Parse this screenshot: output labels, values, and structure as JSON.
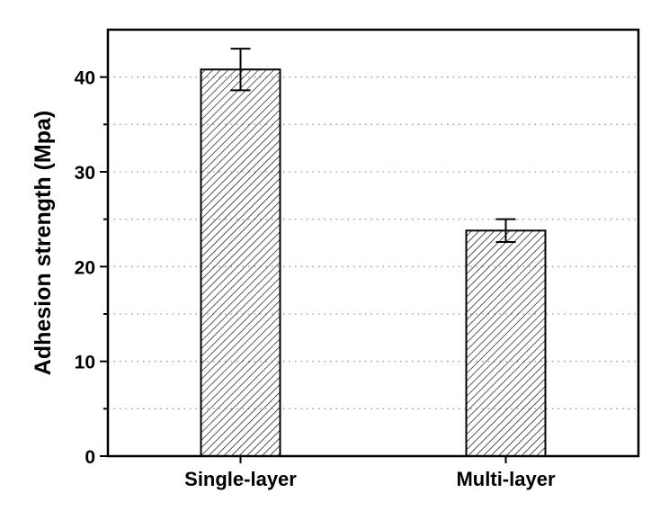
{
  "chart_data": {
    "type": "bar",
    "title": "",
    "xlabel": "",
    "ylabel": "Adhesion strength (Mpa)",
    "categories": [
      "Single-layer",
      "Multi-layer"
    ],
    "values": [
      40.8,
      23.8
    ],
    "errors": [
      2.2,
      1.2
    ],
    "ylim": [
      0,
      45
    ],
    "yticks": [
      0,
      10,
      20,
      30,
      40
    ],
    "ytick_labels": [
      "0",
      "10",
      "20",
      "30",
      "40"
    ],
    "grid": "dotted horizontal every 5",
    "bar_fill": "diagonal hatch",
    "colors": {
      "bar_edge": "#000000",
      "hatch": "#000000",
      "grid": "#999999"
    }
  }
}
